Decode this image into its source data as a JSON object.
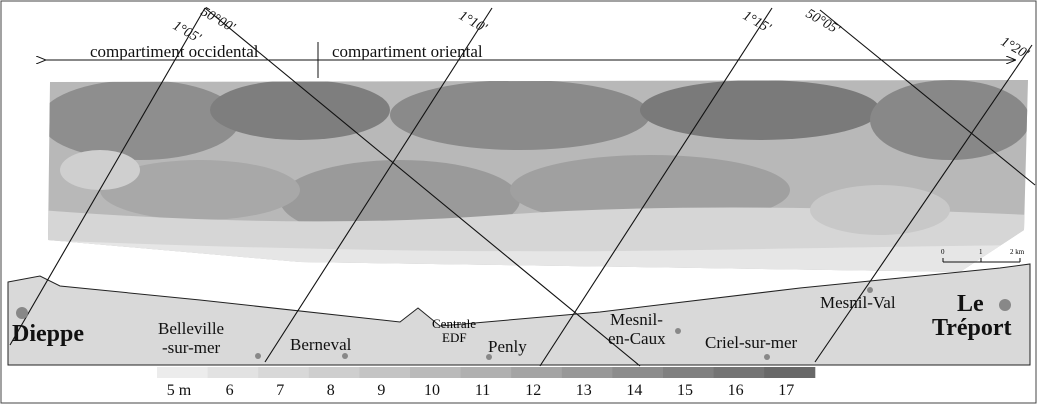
{
  "compartments": {
    "west": "compartiment occidental",
    "east": "compartiment oriental"
  },
  "graticule": {
    "lon_105": "1°05'",
    "lat_5000": "50°00'",
    "lon_110": "1°10'",
    "lon_115": "1°15'",
    "lat_5005": "50°05'",
    "lon_120": "1°20'"
  },
  "places": {
    "dieppe": "Dieppe",
    "belleville_1": "Belleville",
    "belleville_2": "-sur-mer",
    "berneval": "Berneval",
    "centrale_1": "Centrale",
    "centrale_2": "EDF",
    "penly": "Penly",
    "mesnil_caux_1": "Mesnil-",
    "mesnil_caux_2": "en-Caux",
    "criel": "Criel-sur-mer",
    "mesnil_val": "Mesnil-Val",
    "treport_1": "Le",
    "treport_2": "Tréport"
  },
  "scale_bar": {
    "start": "0",
    "mid": "1",
    "end": "2 km"
  },
  "legend": [
    {
      "label": "5 m",
      "color": "#ececec"
    },
    {
      "label": "6",
      "color": "#e2e2e2"
    },
    {
      "label": "7",
      "color": "#d8d8d8"
    },
    {
      "label": "8",
      "color": "#cecece"
    },
    {
      "label": "9",
      "color": "#c4c4c4"
    },
    {
      "label": "10",
      "color": "#bababa"
    },
    {
      "label": "11",
      "color": "#b0b0b0"
    },
    {
      "label": "12",
      "color": "#a4a4a4"
    },
    {
      "label": "13",
      "color": "#989898"
    },
    {
      "label": "14",
      "color": "#8c8c8c"
    },
    {
      "label": "15",
      "color": "#808080"
    },
    {
      "label": "16",
      "color": "#747474"
    },
    {
      "label": "17",
      "color": "#686868"
    }
  ]
}
